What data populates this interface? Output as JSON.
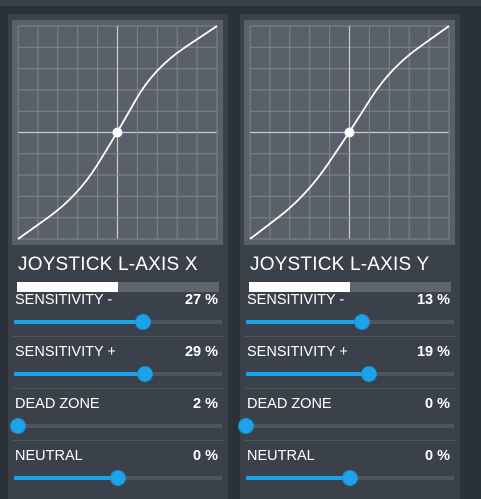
{
  "panels": [
    {
      "title": "JOYSTICK L-AXIS X",
      "level": 0.5,
      "curve": [
        [
          0,
          0
        ],
        [
          0.3,
          0.2
        ],
        [
          0.5,
          0.5
        ],
        [
          0.68,
          0.8
        ],
        [
          1,
          1
        ]
      ],
      "settings": [
        {
          "label": "SENSITIVITY -",
          "value": "27 %",
          "position": 0.62
        },
        {
          "label": "SENSITIVITY +",
          "value": "29 %",
          "position": 0.63
        },
        {
          "label": "DEAD ZONE",
          "value": "2 %",
          "position": 0.02
        },
        {
          "label": "NEUTRAL",
          "value": "0 %",
          "position": 0.5
        }
      ]
    },
    {
      "title": "JOYSTICK L-AXIS Y",
      "level": 0.5,
      "curve": [
        [
          0,
          0
        ],
        [
          0.28,
          0.2
        ],
        [
          0.5,
          0.5
        ],
        [
          0.7,
          0.8
        ],
        [
          1,
          1
        ]
      ],
      "settings": [
        {
          "label": "SENSITIVITY -",
          "value": "13 %",
          "position": 0.56
        },
        {
          "label": "SENSITIVITY +",
          "value": "19 %",
          "position": 0.59
        },
        {
          "label": "DEAD ZONE",
          "value": "0 %",
          "position": 0.0
        },
        {
          "label": "NEUTRAL",
          "value": "0 %",
          "position": 0.5
        }
      ]
    }
  ],
  "colors": {
    "accent": "#1aa3e8",
    "panel": "#3a414b",
    "graph": "#5a606a"
  }
}
